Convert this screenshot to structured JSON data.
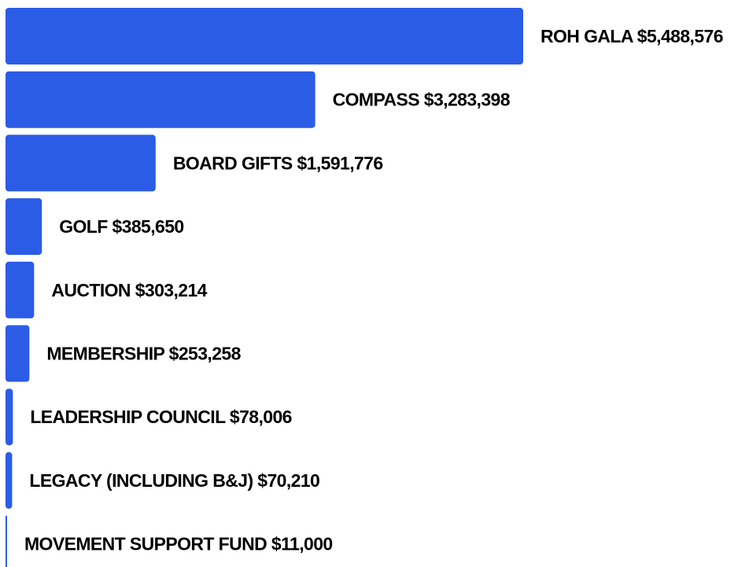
{
  "chart_data": {
    "type": "bar",
    "orientation": "horizontal",
    "bar_color": "#2B5CE6",
    "categories": [
      "ROH GALA",
      "COMPASS",
      "BOARD GIFTS",
      "GOLF",
      "AUCTION",
      "MEMBERSHIP",
      "LEADERSHIP COUNCIL",
      "LEGACY (INCLUDING B&J)",
      "MOVEMENT SUPPORT FUND"
    ],
    "values": [
      5488576,
      3283398,
      1591776,
      385650,
      303214,
      253258,
      78006,
      70210,
      11000
    ],
    "labels": [
      "ROH GALA $5,488,576",
      "COMPASS $3,283,398",
      "BOARD GIFTS $1,591,776",
      "GOLF $385,650",
      "AUCTION $303,214",
      "MEMBERSHIP $253,258",
      "LEADERSHIP COUNCIL $78,006",
      "LEGACY (INCLUDING B&J) $70,210",
      "MOVEMENT SUPPORT FUND $11,000"
    ],
    "title": "",
    "xlabel": "",
    "ylabel": "",
    "grid": false,
    "legend": "none"
  }
}
